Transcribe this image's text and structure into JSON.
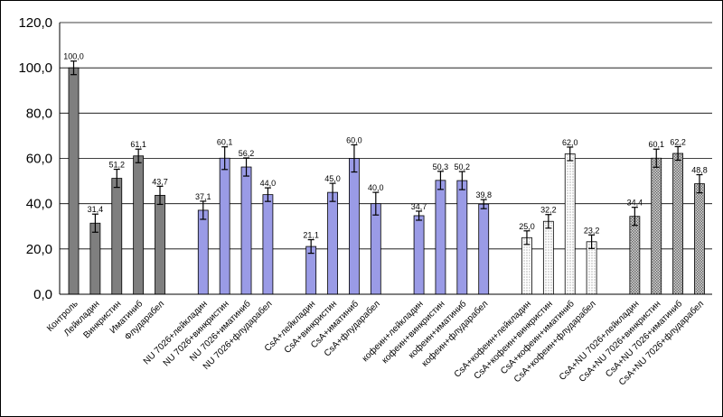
{
  "chart_data": {
    "type": "bar",
    "ylim": [
      0,
      120
    ],
    "yticks": [
      "0,0",
      "20,0",
      "40,0",
      "60,0",
      "80,0",
      "100,0",
      "120,0"
    ],
    "grid": true,
    "legend": "none",
    "colors": {
      "dark": "#7f7f7f",
      "blue": "#9a9be6",
      "dotted": "#ffffff",
      "hatched": "#b0b0b0"
    },
    "groups": [
      {
        "style": "dark",
        "bars": [
          {
            "category": "Контроль",
            "value": 100.0,
            "label": "100,0",
            "error": 3
          },
          {
            "category": "Лейкладин",
            "value": 31.4,
            "label": "31,4",
            "error": 4
          },
          {
            "category": "Винкристин",
            "value": 51.2,
            "label": "51,2",
            "error": 4
          },
          {
            "category": "Иматиниб",
            "value": 61.1,
            "label": "61,1",
            "error": 3
          },
          {
            "category": "Флударабел",
            "value": 43.7,
            "label": "43,7",
            "error": 4
          }
        ]
      },
      {
        "style": "blue",
        "bars": [
          {
            "category": "NU 7026+лейкладин",
            "value": 37.1,
            "label": "37,1",
            "error": 4
          },
          {
            "category": "NU 7026+винкристин",
            "value": 60.1,
            "label": "60,1",
            "error": 5
          },
          {
            "category": "NU 7026+иматиниб",
            "value": 56.2,
            "label": "56,2",
            "error": 4
          },
          {
            "category": "NU 7026+флударабел",
            "value": 44.0,
            "label": "44,0",
            "error": 3
          }
        ]
      },
      {
        "style": "blue",
        "bars": [
          {
            "category": "CsA+лейкладин",
            "value": 21.1,
            "label": "21,1",
            "error": 3
          },
          {
            "category": "CsA+винкристин",
            "value": 45.0,
            "label": "45,0",
            "error": 4
          },
          {
            "category": "CsA+иматиниб",
            "value": 60.0,
            "label": "60,0",
            "error": 6
          },
          {
            "category": "CsA+флударабел",
            "value": 40.0,
            "label": "40,0",
            "error": 5
          }
        ]
      },
      {
        "style": "blue",
        "bars": [
          {
            "category": "кофеин+лейкладин",
            "value": 34.7,
            "label": "34,7",
            "error": 2
          },
          {
            "category": "кофеин+винкристин",
            "value": 50.3,
            "label": "50,3",
            "error": 4
          },
          {
            "category": "кофеин+иматиниб",
            "value": 50.2,
            "label": "50,2",
            "error": 4
          },
          {
            "category": "кофеин+флударабел",
            "value": 39.8,
            "label": "39,8",
            "error": 2
          }
        ]
      },
      {
        "style": "dotted",
        "bars": [
          {
            "category": "CsA+кофеин+лейкладин",
            "value": 25.0,
            "label": "25,0",
            "error": 3
          },
          {
            "category": "CsA+кофеин+винкристин",
            "value": 32.2,
            "label": "32,2",
            "error": 3
          },
          {
            "category": "CsA+кофеин+иматиниб",
            "value": 62.0,
            "label": "62,0",
            "error": 3
          },
          {
            "category": "CsA+кофеин+флударабел",
            "value": 23.2,
            "label": "23,2",
            "error": 3
          }
        ]
      },
      {
        "style": "hatched",
        "bars": [
          {
            "category": "CsA+NU 7026+лейкладин",
            "value": 34.4,
            "label": "34,4",
            "error": 4
          },
          {
            "category": "CsA+NU 7026+винкристин",
            "value": 60.1,
            "label": "60,1",
            "error": 4
          },
          {
            "category": "CsA+NU 7026+иматиниб",
            "value": 62.2,
            "label": "62,2",
            "error": 3
          },
          {
            "category": "CsA+NU 7026+флударабел",
            "value": 48.8,
            "label": "48,8",
            "error": 4
          }
        ]
      }
    ]
  }
}
